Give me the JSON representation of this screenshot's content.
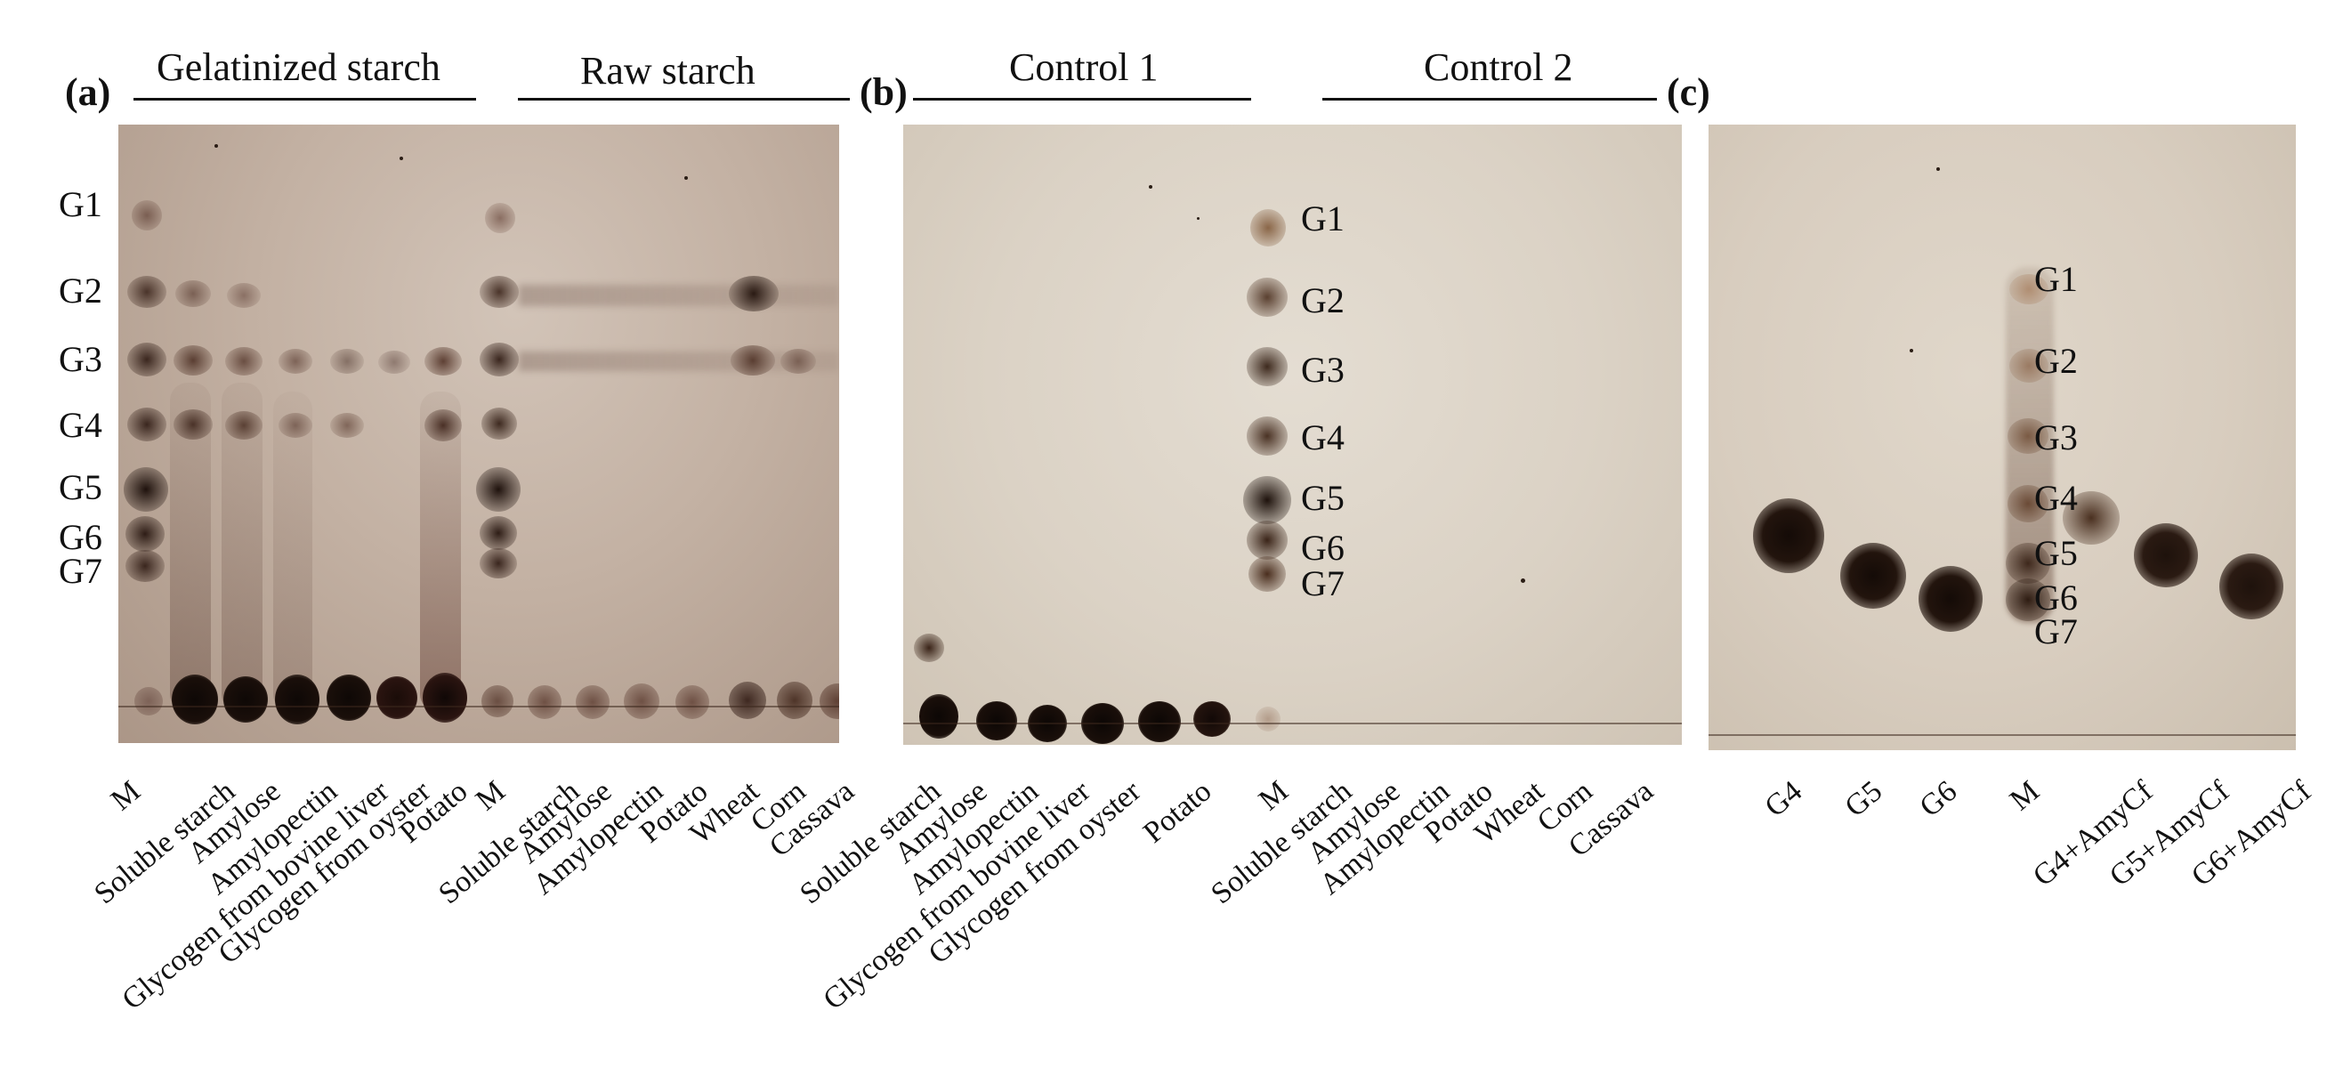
{
  "panels": {
    "a": {
      "letter": "(a)",
      "groups": [
        "Gelatinized starch",
        "Raw starch"
      ]
    },
    "b": {
      "letter": "(b)",
      "groups": [
        "Control 1",
        "Control 2"
      ]
    },
    "c": {
      "letter": "(c)"
    }
  },
  "markers": [
    "G1",
    "G2",
    "G3",
    "G4",
    "G5",
    "G6",
    "G7"
  ],
  "lanes": {
    "a": [
      "M",
      "Soluble starch",
      "Amylose",
      "Amylopectin",
      "Glycogen from bovine liver",
      "Glycogen from oyster",
      "Potato",
      "M",
      "Soluble starch",
      "Amylose",
      "Amylopectin",
      "Potato",
      "Wheat",
      "Corn",
      "Cassava"
    ],
    "b": [
      "Soluble starch",
      "Amylose",
      "Amylopectin",
      "Glycogen from bovine liver",
      "Glycogen from oyster",
      "Potato",
      "M",
      "Soluble starch",
      "Amylose",
      "Amylopectin",
      "Potato",
      "Wheat",
      "Corn",
      "Cassava"
    ],
    "c": [
      "G4",
      "G5",
      "G6",
      "M",
      "G4+AmyCf",
      "G5+AmyCf",
      "G6+AmyCf"
    ]
  },
  "colors": {
    "plate_a": "#b9a596",
    "plate_b": "#ddd5c9",
    "plate_c": "#dcd2c3",
    "spot_dark": "#1a0f0a",
    "spot_brown": "#5a3a28"
  }
}
